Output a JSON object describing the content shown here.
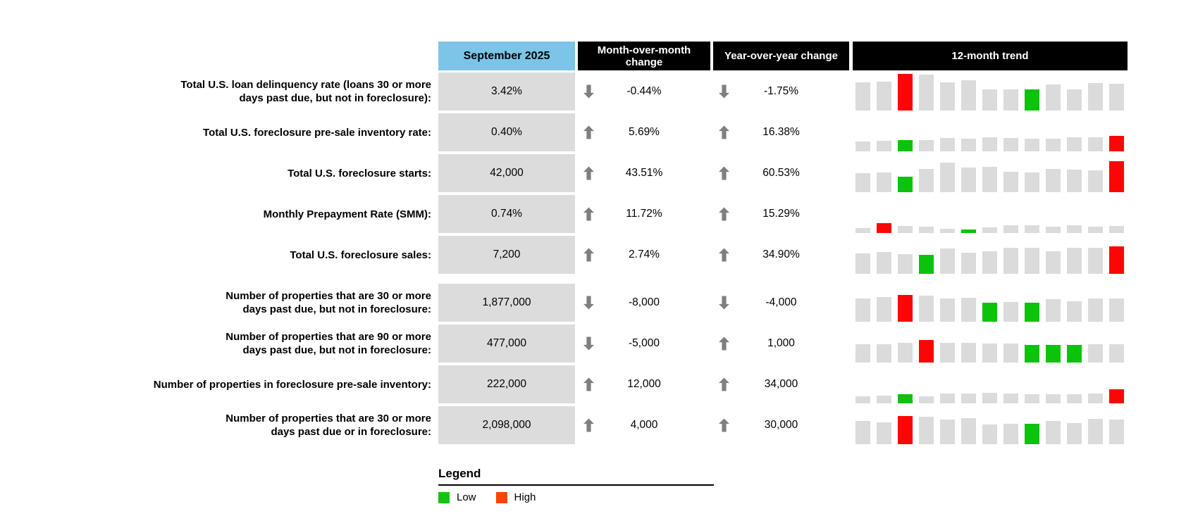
{
  "header": {
    "period": "September 2025",
    "mom": "Month-over-month change",
    "yoy": "Year-over-year change",
    "trend": "12-month trend"
  },
  "legend": {
    "title": "Legend",
    "low": "Low",
    "high": "High"
  },
  "colors": {
    "period_header_bg": "#7cc4e8",
    "header_bg": "#000000",
    "header_text": "#ffffff",
    "value_cell_bg": "#dcdcdc",
    "bar_gray": "#dbdbdb",
    "bar_green": "#0cc30c",
    "bar_red": "#fb0505",
    "legend_low": "#12c312",
    "legend_high": "#fa4408",
    "arrow": "#7f7f7f"
  },
  "chart_data": {
    "type": "table",
    "columns": [
      "September 2025",
      "Month-over-month change",
      "Year-over-year change",
      "12-month trend"
    ],
    "trend_note": "bars = 13 monthly bars per row, pixel heights; low = green-highlighted month indexes, high = red-highlighted month indexes",
    "rows": [
      {
        "label": "Total U.S. loan delinquency rate (loans 30 or more\ndays past due, but not in foreclosure):",
        "value": "3.42%",
        "mom_dir": "down",
        "mom": "-0.44%",
        "yoy_dir": "down",
        "yoy": "-1.75%",
        "trend": {
          "bars": [
            40,
            41,
            52,
            51,
            40,
            43,
            30,
            30,
            30,
            37,
            30,
            39,
            38
          ],
          "low": [
            8
          ],
          "high": [
            2
          ]
        }
      },
      {
        "label": "Total U.S. foreclosure pre-sale inventory rate:",
        "value": "0.40%",
        "mom_dir": "up",
        "mom": "5.69%",
        "yoy_dir": "up",
        "yoy": "16.38%",
        "trend": {
          "bars": [
            14,
            15,
            16,
            16,
            19,
            18,
            20,
            19,
            18,
            18,
            20,
            20,
            22
          ],
          "low": [
            2
          ],
          "high": [
            12
          ]
        }
      },
      {
        "label": "Total U.S. foreclosure starts:",
        "value": "42,000",
        "mom_dir": "up",
        "mom": "43.51%",
        "yoy_dir": "up",
        "yoy": "60.53%",
        "trend": {
          "bars": [
            27,
            28,
            22,
            33,
            42,
            35,
            36,
            29,
            28,
            33,
            32,
            31,
            44
          ],
          "low": [
            2
          ],
          "high": [
            12
          ]
        }
      },
      {
        "label": "Monthly Prepayment Rate (SMM):",
        "value": "0.74%",
        "mom_dir": "up",
        "mom": "11.72%",
        "yoy_dir": "up",
        "yoy": "15.29%",
        "trend": {
          "bars": [
            7,
            14,
            10,
            9,
            6,
            5,
            8,
            11,
            11,
            9,
            11,
            9,
            10
          ],
          "low": [
            5
          ],
          "high": [
            1
          ]
        }
      },
      {
        "label": "Total U.S. foreclosure sales:",
        "value": "7,200",
        "mom_dir": "up",
        "mom": "2.74%",
        "yoy_dir": "up",
        "yoy": "34.90%",
        "trend": {
          "bars": [
            29,
            31,
            28,
            27,
            36,
            30,
            32,
            37,
            37,
            32,
            37,
            37,
            39
          ],
          "low": [
            3
          ],
          "high": [
            12
          ]
        }
      },
      {
        "label": "Number of properties that are 30 or more\ndays past due, but not in foreclosure:",
        "value": "1,877,000",
        "mom_dir": "down",
        "mom": "-8,000",
        "yoy_dir": "down",
        "yoy": "-4,000",
        "trend": {
          "bars": [
            33,
            35,
            38,
            37,
            33,
            34,
            27,
            28,
            27,
            32,
            29,
            33,
            33
          ],
          "low": [
            6,
            8
          ],
          "high": [
            2
          ]
        }
      },
      {
        "label": "Number of properties that are 90 or more\ndays past due, but not in foreclosure:",
        "value": "477,000",
        "mom_dir": "down",
        "mom": "-5,000",
        "yoy_dir": "up",
        "yoy": "1,000",
        "trend": {
          "bars": [
            26,
            26,
            28,
            32,
            28,
            28,
            27,
            27,
            25,
            25,
            25,
            26,
            26
          ],
          "low": [
            8,
            9,
            10
          ],
          "high": [
            3
          ]
        }
      },
      {
        "label": "Number of properties in foreclosure pre-sale inventory:",
        "value": "222,000",
        "mom_dir": "up",
        "mom": "12,000",
        "yoy_dir": "up",
        "yoy": "34,000",
        "trend": {
          "bars": [
            10,
            11,
            13,
            10,
            14,
            14,
            15,
            14,
            13,
            13,
            13,
            14,
            20
          ],
          "low": [
            2
          ],
          "high": [
            12
          ]
        }
      },
      {
        "label": "Number of properties that are 30 or more\ndays past due or in foreclosure:",
        "value": "2,098,000",
        "mom_dir": "up",
        "mom": "4,000",
        "yoy_dir": "up",
        "yoy": "30,000",
        "trend": {
          "bars": [
            33,
            31,
            40,
            39,
            35,
            37,
            28,
            29,
            29,
            33,
            30,
            36,
            35
          ],
          "low": [
            8
          ],
          "high": [
            2
          ]
        }
      }
    ]
  }
}
